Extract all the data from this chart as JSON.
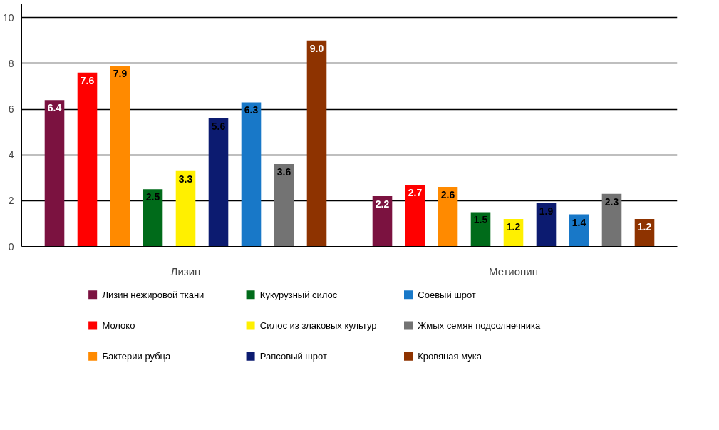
{
  "chart_data": {
    "type": "bar",
    "categories": [
      "Лизин",
      "Метионин"
    ],
    "series": [
      {
        "name": "Лизин нежировой ткани",
        "color": "#7b1240",
        "values": [
          6.4,
          2.2
        ]
      },
      {
        "name": "Молоко",
        "color": "#ff0000",
        "values": [
          7.6,
          2.7
        ]
      },
      {
        "name": "Бактерии рубца",
        "color": "#ff8a00",
        "values": [
          7.9,
          2.6
        ]
      },
      {
        "name": "Кукурузный силос",
        "color": "#006b1a",
        "values": [
          2.5,
          1.5
        ]
      },
      {
        "name": "Силос из злаковых культур",
        "color": "#fff000",
        "values": [
          3.3,
          1.2
        ]
      },
      {
        "name": "Рапсовый шрот",
        "color": "#0c1b70",
        "values": [
          5.6,
          1.9
        ]
      },
      {
        "name": "Соевый шрот",
        "color": "#1878c8",
        "values": [
          6.3,
          1.4
        ]
      },
      {
        "name": "Жмых семян подсолнечника",
        "color": "#737373",
        "values": [
          3.6,
          2.3
        ]
      },
      {
        "name": "Кровяная мука",
        "color": "#8e3300",
        "values": [
          9.0,
          1.2
        ],
        "value_labels": [
          "9.0",
          "1.2"
        ]
      }
    ],
    "ylim": [
      0,
      10.6
    ],
    "yticks": [
      0,
      2,
      4,
      6,
      8,
      10
    ],
    "grid": "y",
    "legend": "bottom",
    "data_labels": true
  }
}
